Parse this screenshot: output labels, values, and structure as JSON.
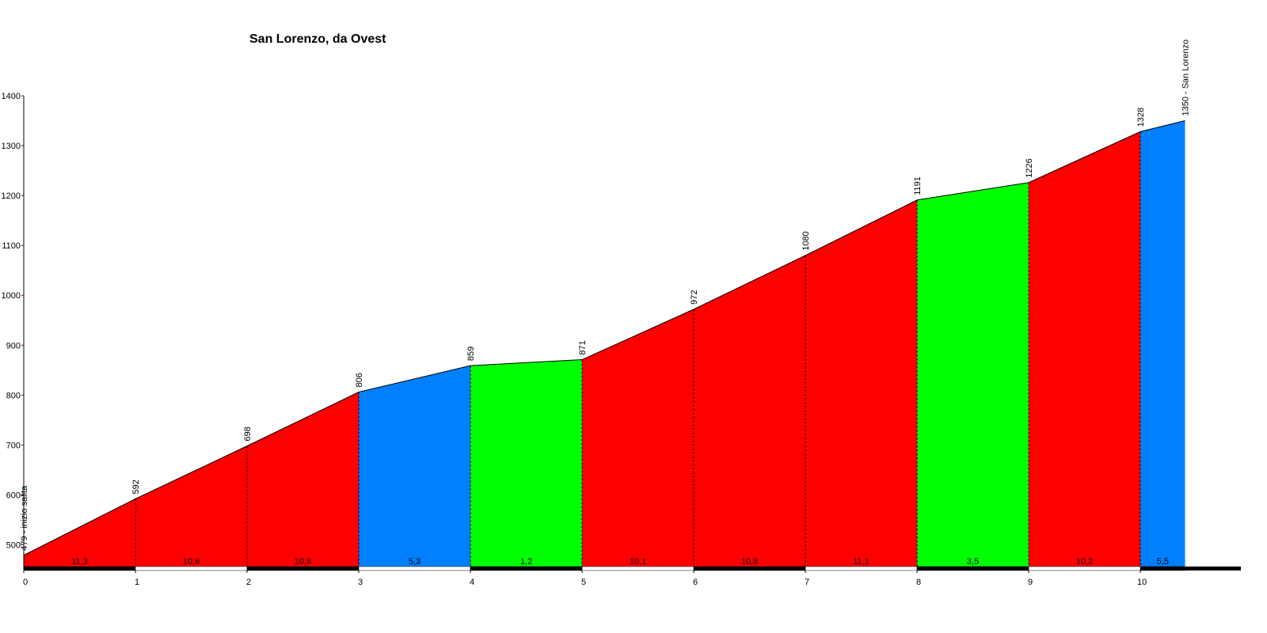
{
  "chart_data": {
    "type": "elevation-profile",
    "title": "San Lorenzo, da Ovest",
    "x": [
      0,
      1,
      2,
      3,
      4,
      5,
      6,
      7,
      8,
      9,
      10,
      10.4
    ],
    "values": [
      479,
      592,
      698,
      806,
      859,
      871,
      972,
      1080,
      1191,
      1226,
      1328,
      1350
    ],
    "value_labels": [
      "479 - inizio salita",
      "592",
      "698",
      "806",
      "859",
      "871",
      "972",
      "1080",
      "1191",
      "1226",
      "1328",
      "1350 - San Lorenzo"
    ],
    "gradients": {
      "values": [
        11.3,
        10.6,
        10.8,
        5.3,
        1.2,
        10.1,
        10.8,
        11.1,
        3.5,
        10.2,
        5.5
      ],
      "value_labels": [
        "11,3",
        "10,6",
        "10,8",
        "5,3",
        "1,2",
        "10,1",
        "10,8",
        "11,1",
        "3,5",
        "10,2",
        "5,5"
      ],
      "colors": [
        "#ff0000",
        "#ff0000",
        "#ff0000",
        "#0080ff",
        "#00ff00",
        "#ff0000",
        "#ff0000",
        "#ff0000",
        "#00ff00",
        "#ff0000",
        "#0080ff"
      ]
    },
    "xlim": [
      0,
      10.9
    ],
    "xticks": [
      0,
      1,
      2,
      3,
      4,
      5,
      6,
      7,
      8,
      9,
      10
    ],
    "ylim": [
      450,
      1400
    ],
    "yticks": [
      500,
      600,
      700,
      800,
      900,
      1000,
      1100,
      1200,
      1300,
      1400
    ]
  }
}
